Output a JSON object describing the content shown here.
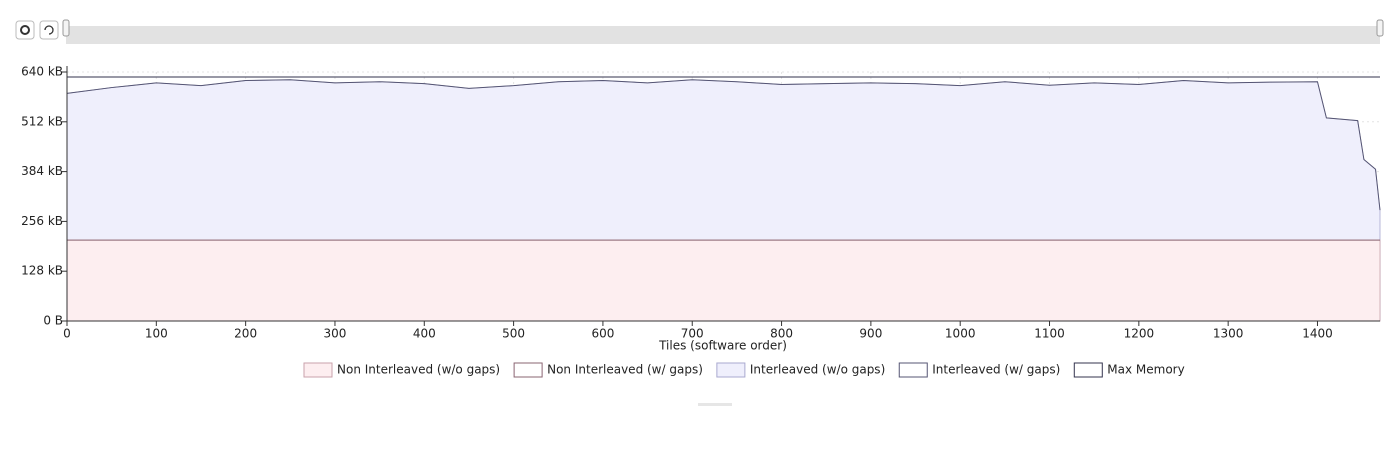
{
  "chart_data": {
    "type": "line",
    "xlabel": "Tiles  (software order)",
    "x": [
      0,
      50,
      100,
      150,
      200,
      250,
      300,
      350,
      400,
      450,
      500,
      550,
      600,
      650,
      700,
      750,
      800,
      850,
      900,
      950,
      1000,
      1050,
      1100,
      1150,
      1200,
      1250,
      1300,
      1350,
      1400,
      1410,
      1445,
      1452,
      1465,
      1470
    ],
    "xlim": [
      0,
      1470
    ],
    "xticks": [
      0,
      100,
      200,
      300,
      400,
      500,
      600,
      700,
      800,
      900,
      1000,
      1100,
      1200,
      1300,
      1400
    ],
    "ylim": [
      0,
      640
    ],
    "yticks": [
      {
        "value": 0,
        "label": "0 B"
      },
      {
        "value": 128,
        "label": "128 kB"
      },
      {
        "value": 256,
        "label": "256 kB"
      },
      {
        "value": 384,
        "label": "384 kB"
      },
      {
        "value": 512,
        "label": "512 kB"
      },
      {
        "value": 640,
        "label": "640 kB"
      }
    ],
    "grid": true,
    "legend": "bottom",
    "series": [
      {
        "name": "Non Interleaved (w/o gaps)",
        "color": "#c9a2ab",
        "fill": "#fdeef0",
        "values": [
          208,
          208,
          208,
          208,
          208,
          208,
          208,
          208,
          208,
          208,
          208,
          208,
          208,
          208,
          208,
          208,
          208,
          208,
          208,
          208,
          208,
          208,
          208,
          208,
          208,
          208,
          208,
          208,
          208,
          208,
          208,
          208,
          208,
          208
        ]
      },
      {
        "name": "Non Interleaved (w/ gaps)",
        "color": "#8a6472",
        "values": [
          208,
          208,
          208,
          208,
          208,
          208,
          208,
          208,
          208,
          208,
          208,
          208,
          208,
          208,
          208,
          208,
          208,
          208,
          208,
          208,
          208,
          208,
          208,
          208,
          208,
          208,
          208,
          208,
          208,
          208,
          208,
          208,
          208,
          208
        ]
      },
      {
        "name": "Interleaved (w/o gaps)",
        "color": "#a9a9cf",
        "fill": "#efeffc",
        "values": [
          585,
          600,
          612,
          605,
          618,
          620,
          612,
          615,
          610,
          598,
          605,
          615,
          618,
          612,
          620,
          615,
          608,
          610,
          612,
          610,
          605,
          615,
          606,
          612,
          608,
          618,
          612,
          614,
          615,
          522,
          515,
          415,
          390,
          285
        ]
      },
      {
        "name": "Interleaved (w/ gaps)",
        "color": "#555573",
        "values": [
          585,
          600,
          612,
          605,
          618,
          620,
          612,
          615,
          610,
          598,
          605,
          615,
          618,
          612,
          620,
          615,
          608,
          610,
          612,
          610,
          605,
          615,
          606,
          612,
          608,
          618,
          612,
          614,
          615,
          522,
          515,
          415,
          390,
          285
        ]
      },
      {
        "name": "Max Memory",
        "color": "#33334d",
        "values": [
          627,
          627,
          627,
          627,
          627,
          627,
          627,
          627,
          627,
          627,
          627,
          627,
          627,
          627,
          627,
          627,
          627,
          627,
          627,
          627,
          627,
          627,
          627,
          627,
          627,
          627,
          627,
          627,
          627,
          627,
          627,
          627,
          627,
          627
        ]
      }
    ]
  }
}
